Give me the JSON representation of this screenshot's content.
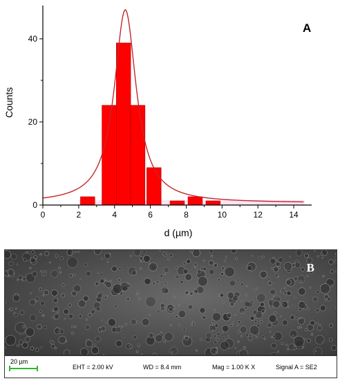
{
  "chart_data": {
    "type": "bar",
    "panel_label": "A",
    "xlabel": "d (µm)",
    "ylabel": "Counts",
    "xlim": [
      0,
      15
    ],
    "ylim": [
      0,
      48
    ],
    "x_ticks": [
      0,
      2,
      4,
      6,
      8,
      10,
      12,
      14
    ],
    "y_ticks": [
      0,
      20,
      40
    ],
    "bin_width": 0.8,
    "bins": [
      {
        "x": 2.5,
        "count": 2
      },
      {
        "x": 3.7,
        "count": 24
      },
      {
        "x": 4.5,
        "count": 39
      },
      {
        "x": 5.3,
        "count": 24
      },
      {
        "x": 6.2,
        "count": 9
      },
      {
        "x": 7.5,
        "count": 1
      },
      {
        "x": 8.5,
        "count": 2
      },
      {
        "x": 9.5,
        "count": 1
      }
    ],
    "fit": {
      "type": "lorentzian",
      "center": 4.6,
      "peak": 47,
      "hwhm": 0.75,
      "baseline": 0.5
    },
    "bar_color": "#ff0000",
    "fit_color": "#c0282a"
  },
  "sem": {
    "panel_label": "B",
    "scale_label": "20 µm",
    "eht": "EHT = 2.00 kV",
    "wd": "WD = 8.4 mm",
    "mag": "Mag = 1.00 K X",
    "signal": "Signal A = SE2"
  }
}
